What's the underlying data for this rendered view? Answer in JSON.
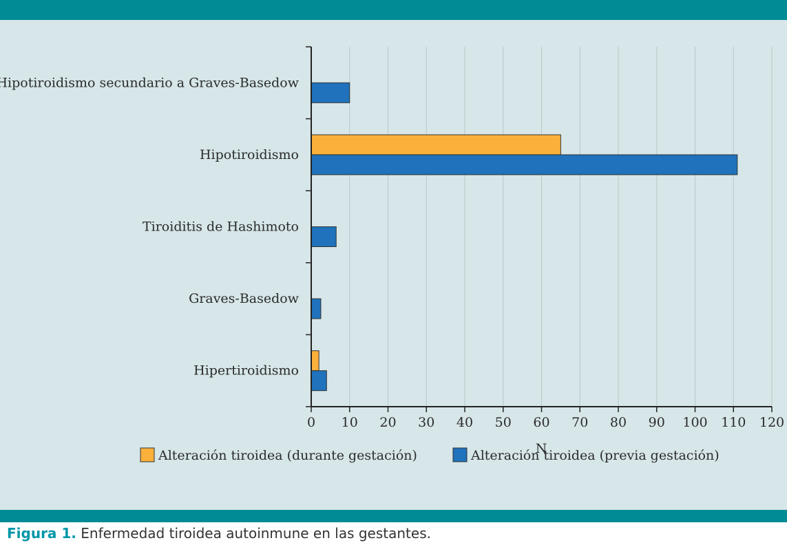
{
  "colors": {
    "frame": "#008b95",
    "panel": "#d6e6e9",
    "grid": "#b9c7c8",
    "axis": "#222222",
    "bar_border": "#333333",
    "caption_label": "#0097a7"
  },
  "chart_data": {
    "type": "bar",
    "orientation": "horizontal",
    "categories": [
      "Hipotiroidismo secundario a Graves-Basedow",
      "Hipotiroidismo",
      "Tiroiditis de Hashimoto",
      "Graves-Basedow",
      "Hipertiroidismo"
    ],
    "series": [
      {
        "name": "Alteración tiroidea (durante gestación)",
        "color": "#fbb03b",
        "values": [
          0,
          65,
          0,
          0,
          2
        ]
      },
      {
        "name": "Alteración tiroidea (previa gestación)",
        "color": "#1f72bb",
        "values": [
          10,
          111,
          6.5,
          2.5,
          4
        ]
      }
    ],
    "xlabel": "N",
    "ylabel": "",
    "xlim": [
      0,
      120
    ],
    "xticks": [
      0,
      10,
      20,
      30,
      40,
      50,
      60,
      70,
      80,
      90,
      100,
      110,
      120
    ],
    "grid": "vertical",
    "legend": "bottom"
  },
  "caption": {
    "label": "Figura 1.",
    "text": " Enfermedad tiroidea autoinmune en las gestantes."
  }
}
